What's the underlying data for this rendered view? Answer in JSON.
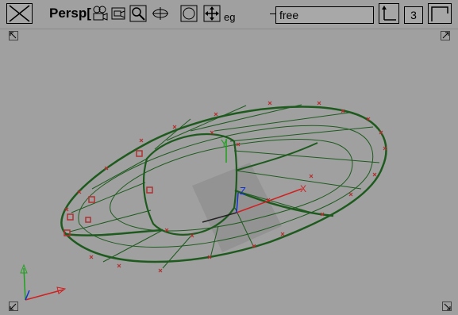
{
  "toolbar": {
    "title": "Persp[",
    "mode_fragment": "eg",
    "mode_field_value": "free",
    "count_value": "3",
    "icons": [
      "close-view-icon",
      "camera-icon",
      "track-icon",
      "zoom-icon",
      "orbit-icon",
      "frame-icon",
      "move-icon",
      "axis-toggle-icon",
      "maximize-icon"
    ]
  },
  "viewport": {
    "background": "#a0a0a0",
    "wire_color": "#1e5a1e",
    "cv_color": "#b03030",
    "axis_labels": {
      "x": "X",
      "y": "Y",
      "z": "Z"
    }
  }
}
